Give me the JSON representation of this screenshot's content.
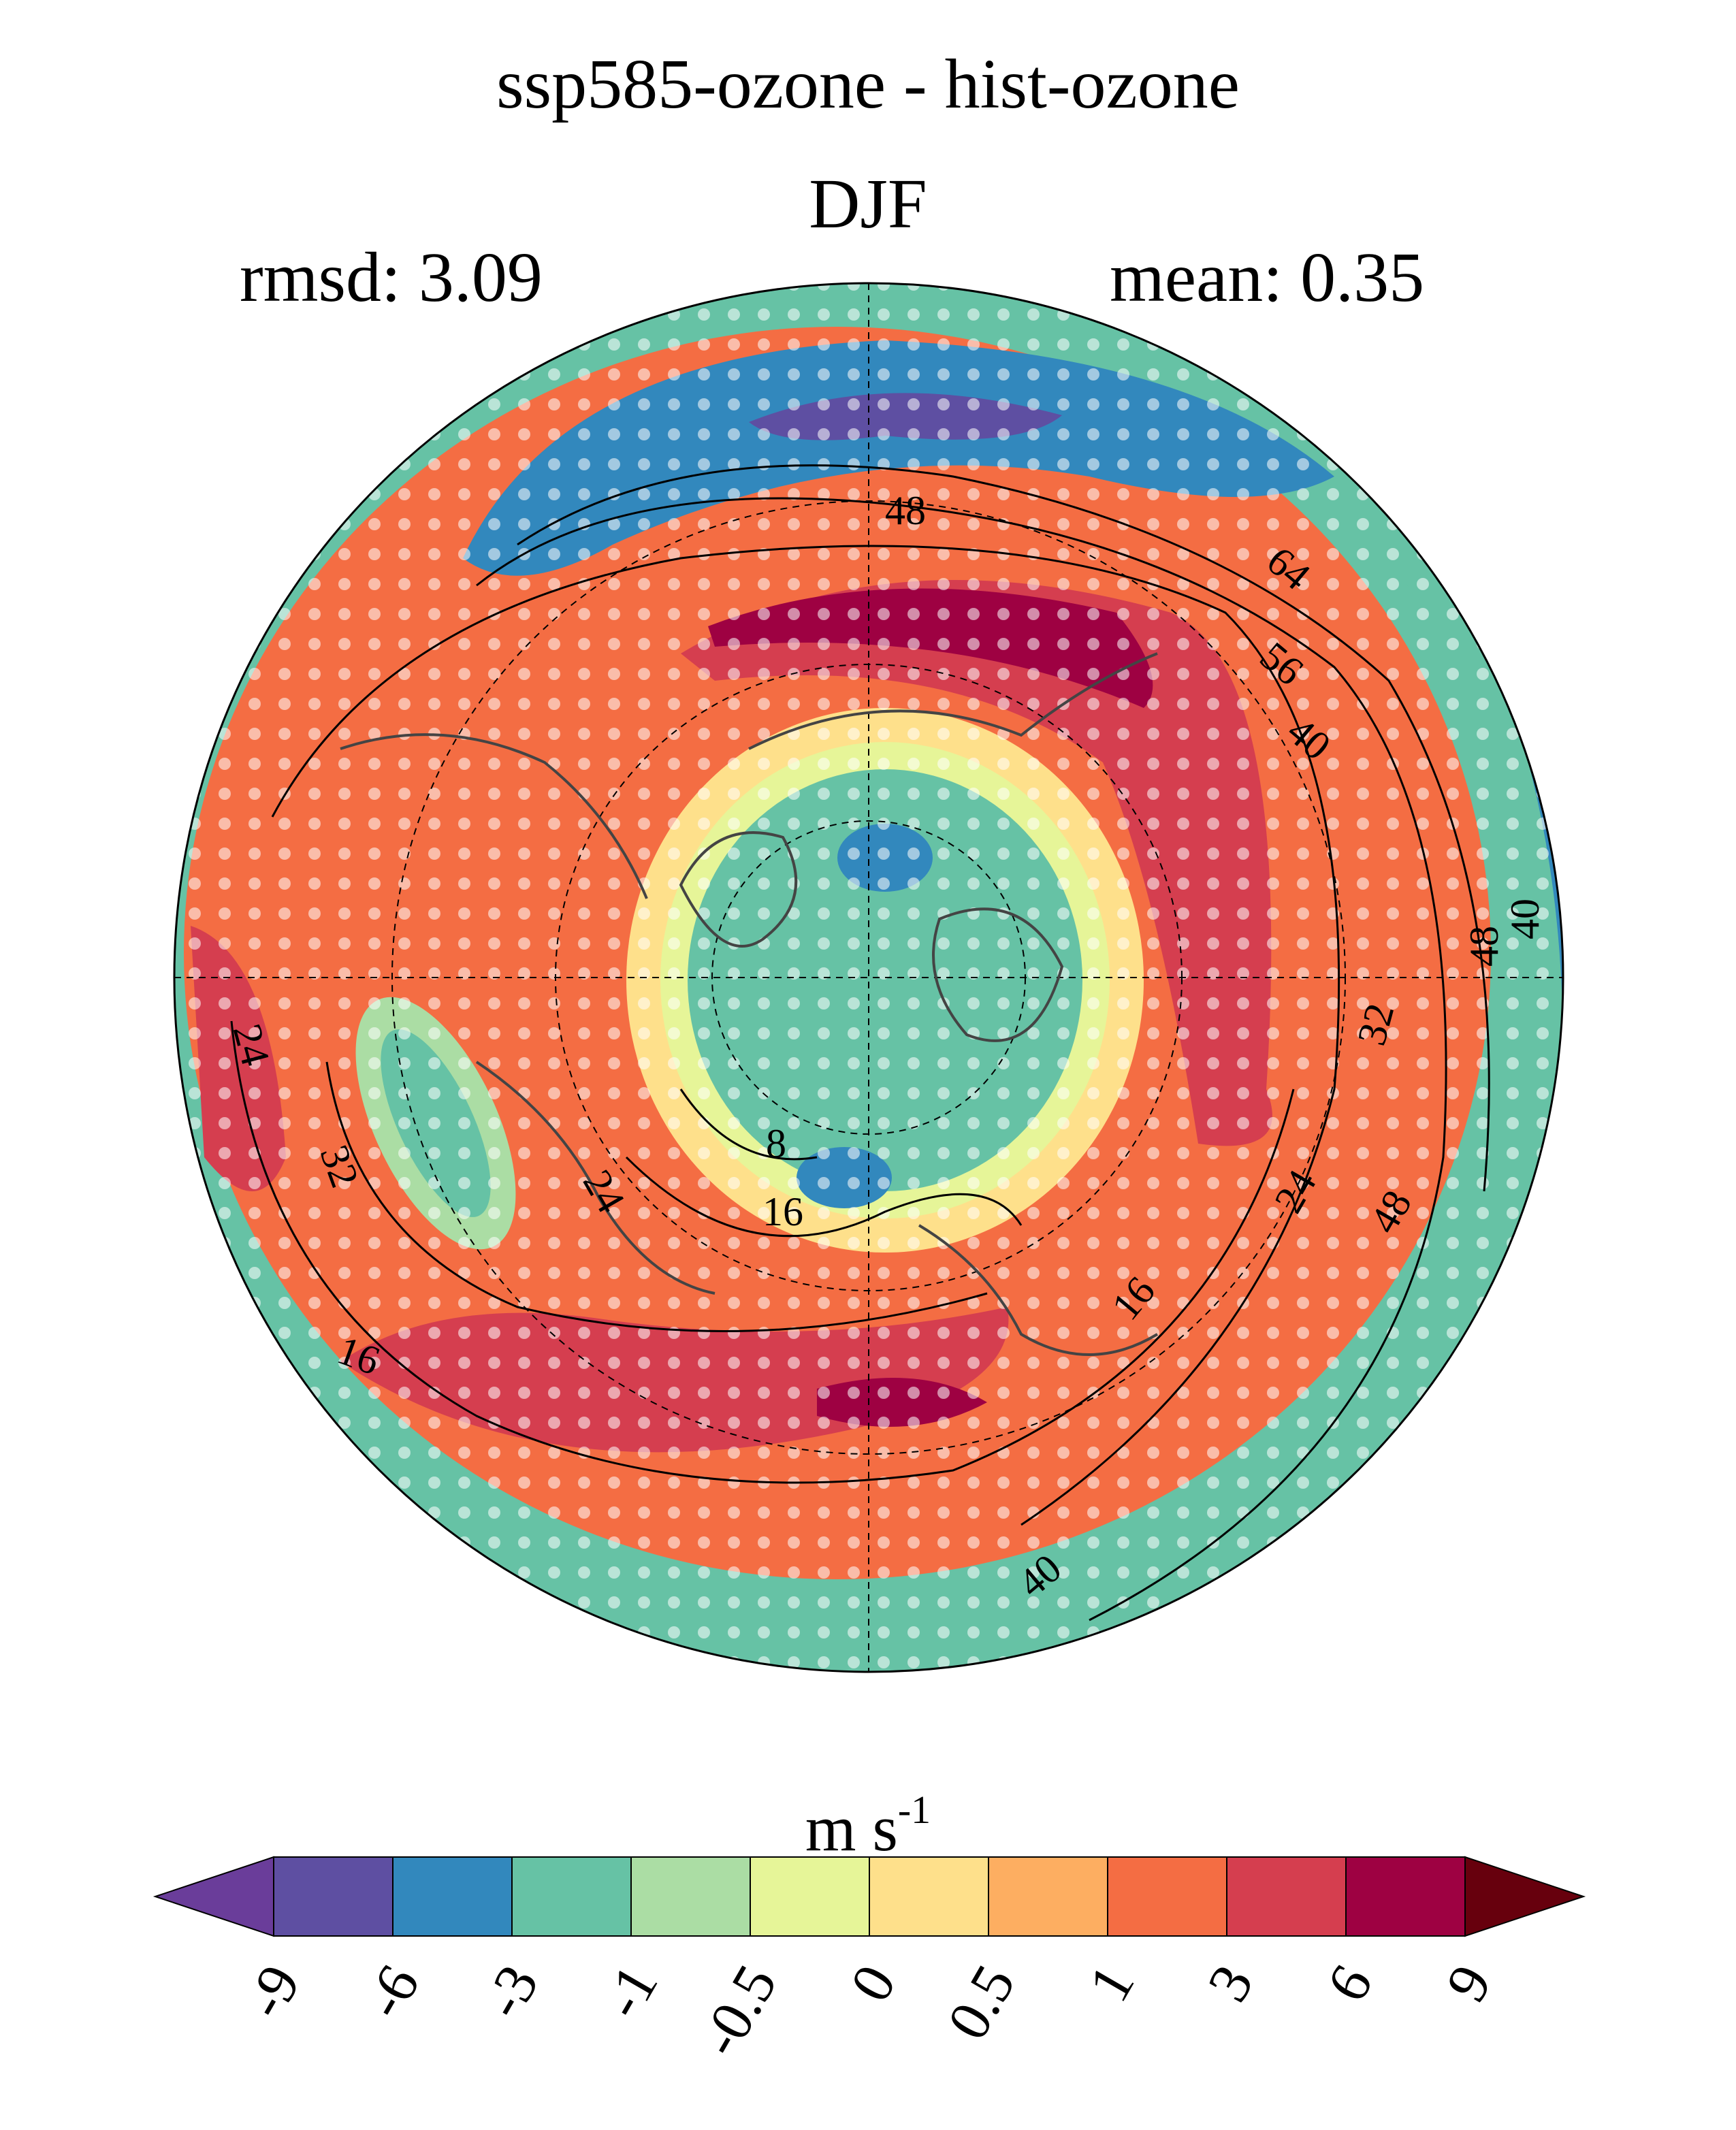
{
  "title": "ssp585-ozone - hist-ozone",
  "season": "DJF",
  "rmsd_label": "rmsd: 3.09",
  "mean_label": "mean: 0.35",
  "colorbar": {
    "units_main": "m s",
    "units_exp": "-1",
    "ticks": [
      "-9",
      "-6",
      "-3",
      "-1",
      "-0.5",
      "0",
      "0.5",
      "1",
      "3",
      "6",
      "9"
    ],
    "colors": [
      "#5e4fa2",
      "#3288bd",
      "#66c2a5",
      "#abdda4",
      "#e6f598",
      "#fee08b",
      "#fdae61",
      "#f46d43",
      "#d53e4f",
      "#9e0142"
    ],
    "under_color": "#6a3d9a",
    "over_color": "#67000d"
  },
  "map": {
    "projection": "north-polar-stereographic",
    "contour_labels": [
      "48",
      "64",
      "56",
      "40",
      "48",
      "40",
      "32",
      "24",
      "16",
      "48",
      "40",
      "8",
      "16",
      "24",
      "32",
      "24",
      "16"
    ],
    "stipple_color": "#ffffff",
    "coast_color": "#444444"
  }
}
